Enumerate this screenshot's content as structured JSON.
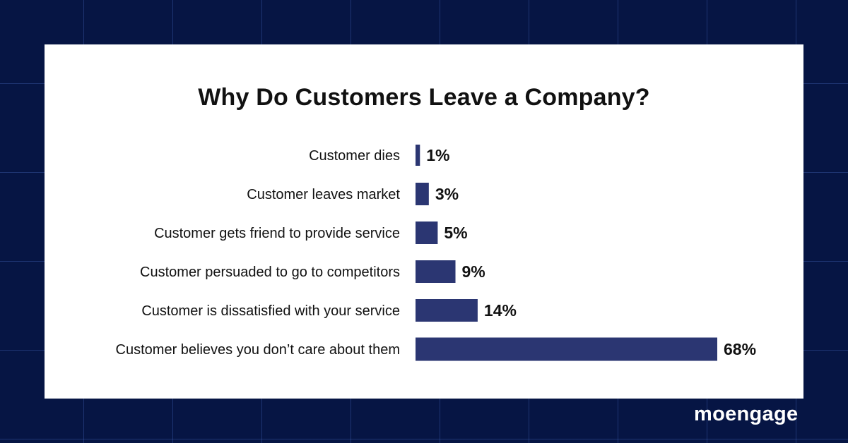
{
  "brand": "moengage",
  "colors": {
    "background": "#061544",
    "grid": "#3c5aaa",
    "card": "#ffffff",
    "bar": "#2b3672",
    "text": "#111111"
  },
  "chart_data": {
    "type": "bar",
    "orientation": "horizontal",
    "title": "Why Do Customers Leave a Company?",
    "categories": [
      "Customer dies",
      "Customer leaves market",
      "Customer gets friend to provide service",
      "Customer persuaded to go to competitors",
      "Customer is dissatisfied with your service",
      "Customer believes you don’t care about them"
    ],
    "values": [
      1,
      3,
      5,
      9,
      14,
      68
    ],
    "value_labels": [
      "1%",
      "3%",
      "5%",
      "9%",
      "14%",
      "68%"
    ],
    "xlim": [
      0,
      68
    ],
    "grid": false,
    "legend": "none"
  }
}
